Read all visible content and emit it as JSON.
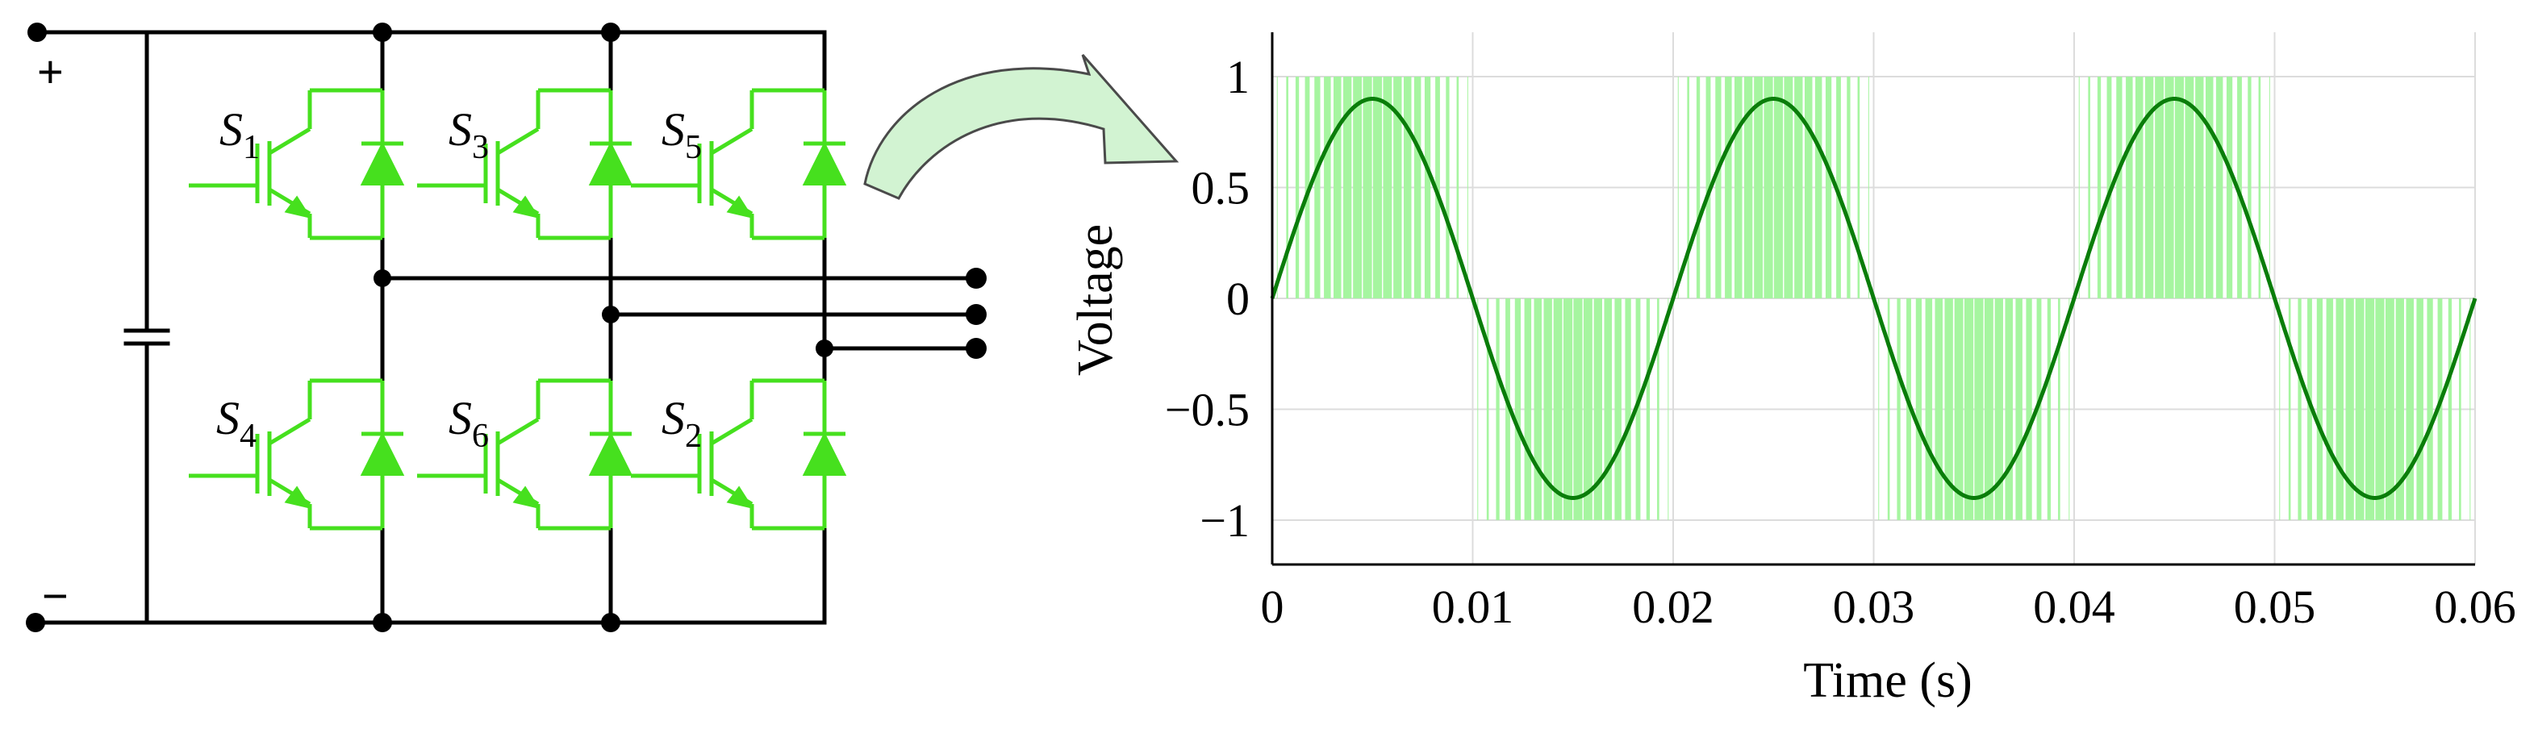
{
  "circuit": {
    "terminals": {
      "positive": "+",
      "negative": "−"
    },
    "switches": [
      {
        "letter": "S",
        "index": "1"
      },
      {
        "letter": "S",
        "index": "3"
      },
      {
        "letter": "S",
        "index": "5"
      },
      {
        "letter": "S",
        "index": "4"
      },
      {
        "letter": "S",
        "index": "6"
      },
      {
        "letter": "S",
        "index": "2"
      }
    ],
    "switch_color": "#46e01e"
  },
  "chart_data": {
    "type": "line",
    "xlabel": "Time (s)",
    "ylabel": "Voltage",
    "xlim": [
      0,
      0.06
    ],
    "ylim": [
      -1.2,
      1.2
    ],
    "xticks": [
      "0",
      "0.01",
      "0.02",
      "0.03",
      "0.04",
      "0.05",
      "0.06"
    ],
    "yticks": [
      "1",
      "0.5",
      "0",
      "−0.5",
      "−1"
    ],
    "grid": true,
    "series": [
      {
        "kind": "pwm",
        "levels": [
          -1,
          0,
          1
        ],
        "carrier_frequency_hz": 2000,
        "color": "#a6f5a0"
      },
      {
        "kind": "sine",
        "amplitude": 0.9,
        "frequency_hz": 50,
        "color": "#0a7d0a"
      }
    ]
  }
}
